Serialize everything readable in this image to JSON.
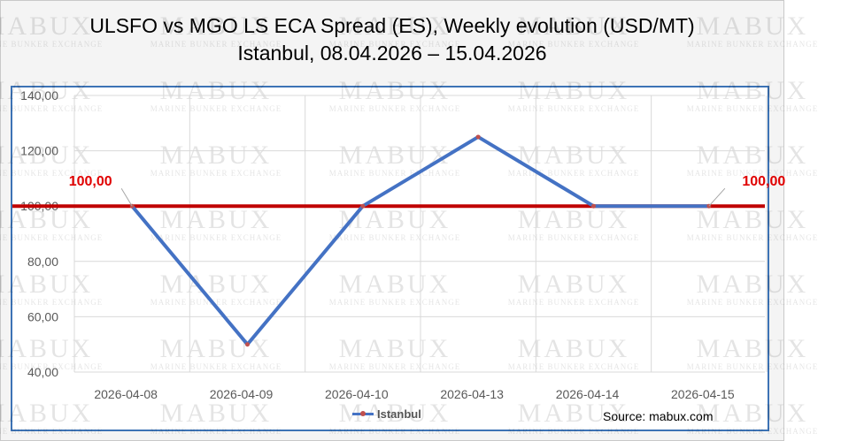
{
  "title": {
    "line1": "ULSFO vs MGO LS ECA Spread (ES), Weekly evolution (USD/MT)",
    "line2": "Istanbul, 08.04.2026 – 15.04.2026"
  },
  "watermark": {
    "brand": "MABUX",
    "tagline": "MARINE BUNKER EXCHANGE"
  },
  "source": "Source: mabux.com",
  "chart_data": {
    "type": "line",
    "categories": [
      "2026-04-08",
      "2026-04-09",
      "2026-04-10",
      "2026-04-13",
      "2026-04-14",
      "2026-04-15"
    ],
    "series": [
      {
        "name": "Istanbul",
        "values": [
          100,
          50,
          100,
          125,
          100,
          100
        ],
        "color": "#4472c4",
        "marker_color": "#c0504d"
      }
    ],
    "reference_line": {
      "value": 100,
      "color": "#c00000"
    },
    "annotations": [
      {
        "text": "100,00",
        "category": "2026-04-08",
        "value": 100
      },
      {
        "text": "100,00",
        "category": "2026-04-15",
        "value": 100
      }
    ],
    "ylim": [
      40,
      140
    ],
    "yticks": [
      "40,00",
      "60,00",
      "80,00",
      "100,00",
      "120,00",
      "140,00"
    ],
    "grid": true,
    "legend": "bottom",
    "title": "ULSFO vs MGO LS ECA Spread (ES), Weekly evolution (USD/MT)",
    "xlabel": "",
    "ylabel": ""
  }
}
